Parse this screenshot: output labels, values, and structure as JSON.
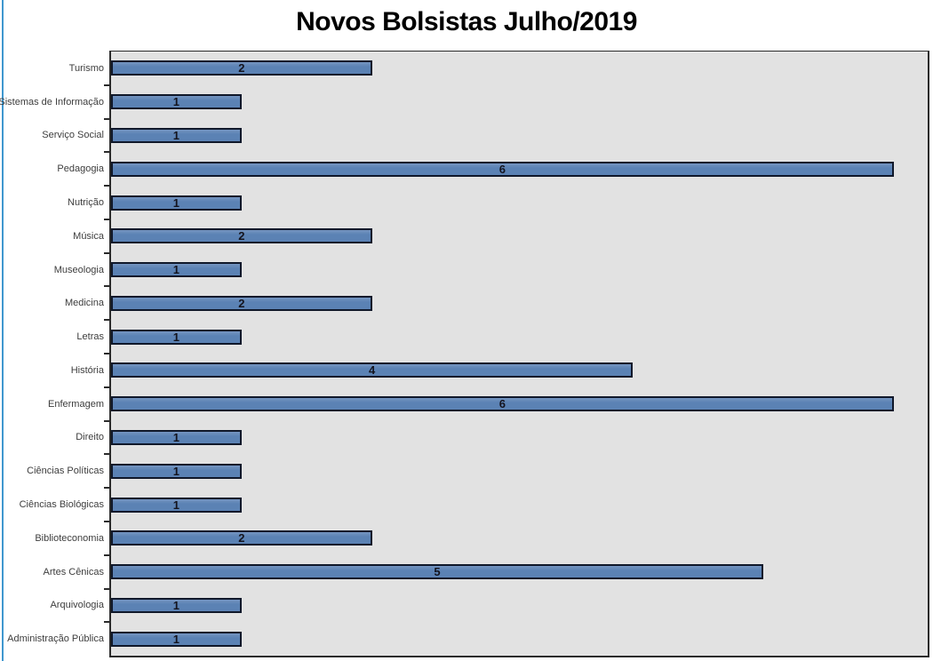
{
  "page": {
    "left_border_color": "#3f97cf",
    "background": "#ffffff"
  },
  "chart_data": {
    "type": "bar",
    "orientation": "horizontal",
    "title": "Novos Bolsistas Julho/2019",
    "categories": [
      "Turismo",
      "Sistemas de Informação",
      "Serviço Social",
      "Pedagogia",
      "Nutrição",
      "Música",
      "Museologia",
      "Medicina",
      "Letras",
      "História",
      "Enfermagem",
      "Direito",
      "Ciências Políticas",
      "Ciências Biológicas",
      "Biblioteconomia",
      "Artes Cênicas",
      "Arquivologia",
      "Administração Pública"
    ],
    "values": [
      2,
      1,
      1,
      6,
      1,
      2,
      1,
      2,
      1,
      4,
      6,
      1,
      1,
      1,
      2,
      5,
      1,
      1
    ],
    "xlabel": "",
    "ylabel": "",
    "xlim": [
      0,
      6.26
    ],
    "grid": false,
    "legend": false,
    "data_labels": "center",
    "colors": {
      "bar_fill": "#5b82b4",
      "bar_fill_top": "#7494c0",
      "bar_border": "#10182a",
      "plot_background": "#e2e2e2",
      "plot_border": "#2b2b2b",
      "value_label_text": "#14141e",
      "category_text": "#3d3d3d",
      "title_text": "#000000"
    }
  }
}
